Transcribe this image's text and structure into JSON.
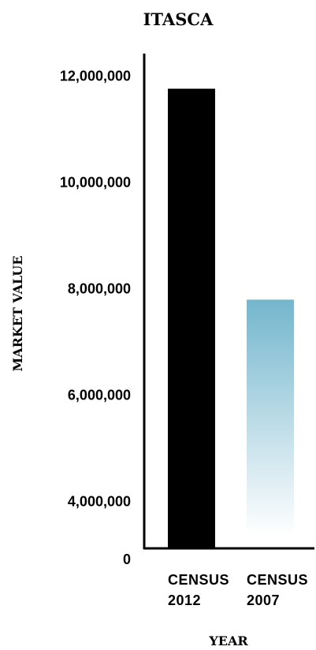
{
  "chart_data": {
    "type": "bar",
    "title": "ITASCA",
    "xlabel": "YEAR",
    "ylabel": "MARKET VALUE",
    "categories": [
      [
        "CENSUS",
        "2012"
      ],
      [
        "CENSUS",
        "2007"
      ]
    ],
    "values": [
      11750000,
      7780000
    ],
    "bar_colors": [
      "#000000",
      "#74b6cd"
    ],
    "bar_gradient_end": "#ffffff",
    "y_tick_values": [
      4000000,
      6000000,
      8000000,
      10000000,
      12000000
    ],
    "y_tick_labels": [
      "4,000,000",
      "6,000,000",
      "8,000,000",
      "10,000,000",
      "12,000,000"
    ],
    "baseline_label": "0",
    "ylim": [
      3100000,
      12500000
    ],
    "grid": false,
    "legend": "none"
  }
}
